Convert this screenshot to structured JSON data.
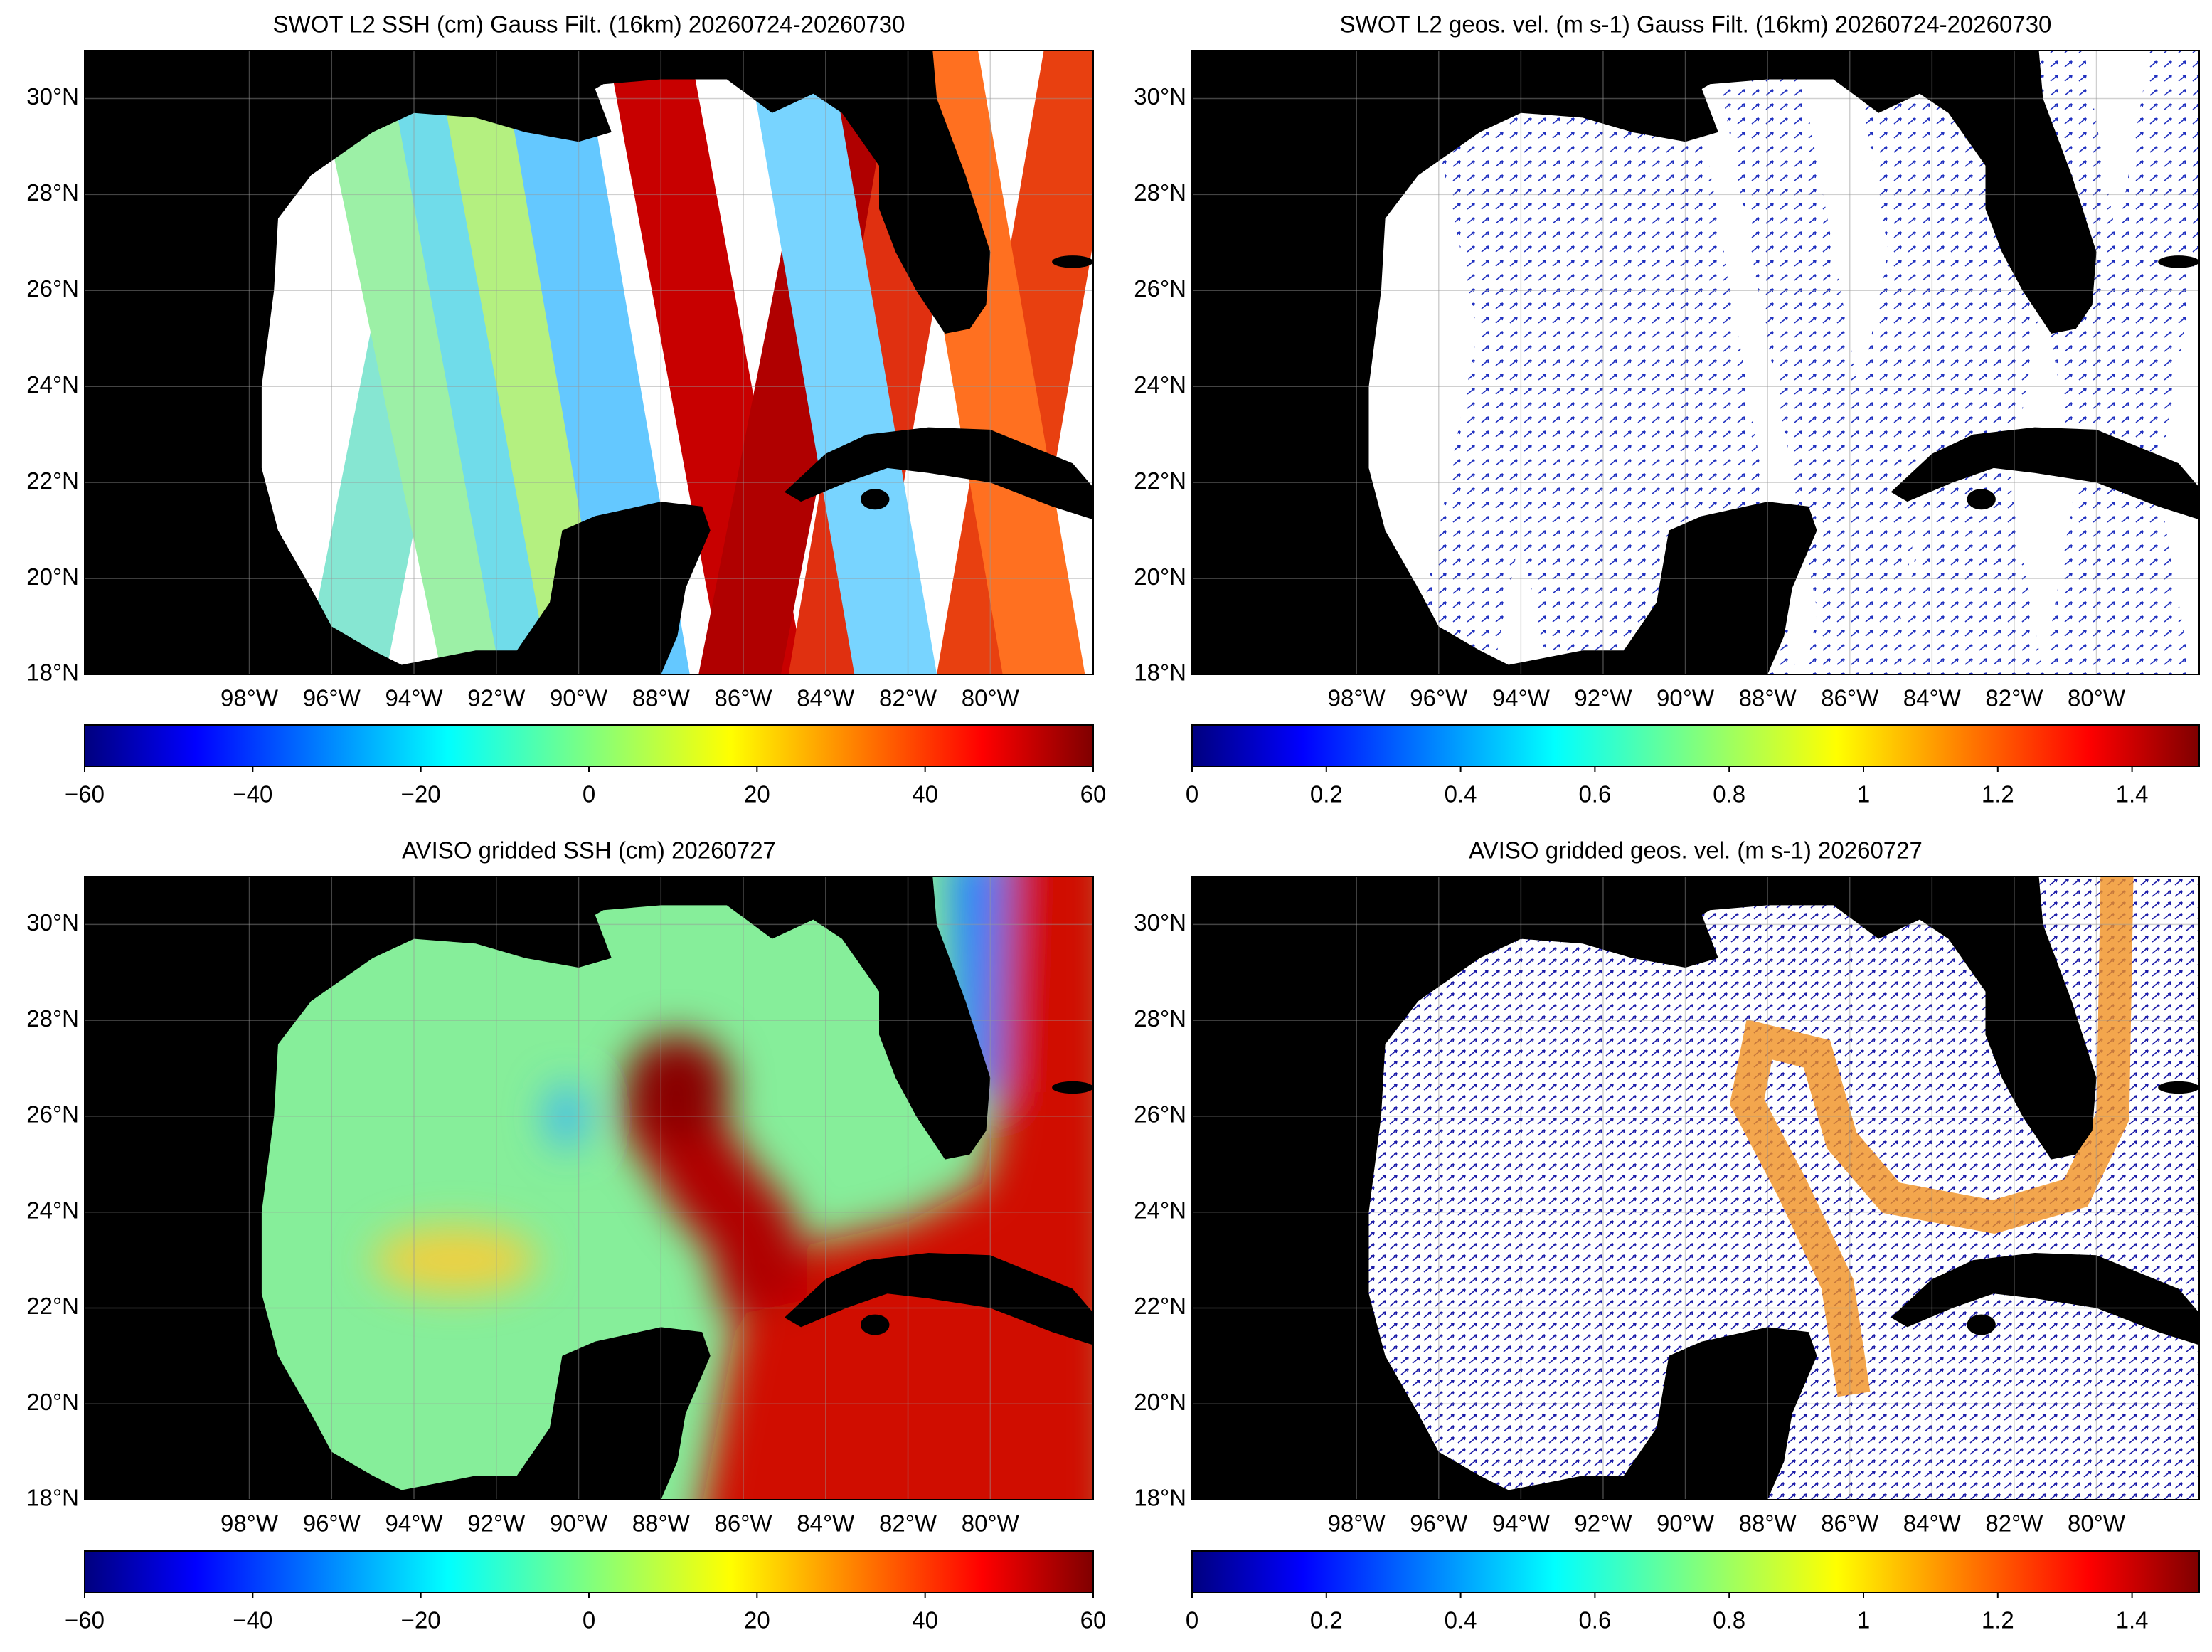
{
  "chart_data": [
    {
      "type": "map",
      "title": "SWOT L2 SSH (cm) Gauss Filt. (16km) 20260724-20260730",
      "xlim": [
        -102,
        -77.5
      ],
      "ylim": [
        18,
        31
      ],
      "xticks": [
        {
          "value": -98,
          "label": "98°W"
        },
        {
          "value": -96,
          "label": "96°W"
        },
        {
          "value": -94,
          "label": "94°W"
        },
        {
          "value": -92,
          "label": "92°W"
        },
        {
          "value": -90,
          "label": "90°W"
        },
        {
          "value": -88,
          "label": "88°W"
        },
        {
          "value": -86,
          "label": "86°W"
        },
        {
          "value": -84,
          "label": "84°W"
        },
        {
          "value": -82,
          "label": "82°W"
        },
        {
          "value": -80,
          "label": "80°W"
        }
      ],
      "yticks": [
        {
          "value": 18,
          "label": "18°N"
        },
        {
          "value": 20,
          "label": "20°N"
        },
        {
          "value": 22,
          "label": "22°N"
        },
        {
          "value": 24,
          "label": "24°N"
        },
        {
          "value": 26,
          "label": "26°N"
        },
        {
          "value": 28,
          "label": "28°N"
        },
        {
          "value": 30,
          "label": "30°N"
        }
      ],
      "grid": true,
      "colorbar": {
        "colormap": "jet",
        "lim": [
          -60,
          60
        ],
        "ticks": [
          {
            "value": -60,
            "label": "−60"
          },
          {
            "value": -40,
            "label": "−40"
          },
          {
            "value": -20,
            "label": "−20"
          },
          0,
          20,
          40,
          60
        ]
      }
    },
    {
      "type": "map",
      "title": "SWOT L2 geos. vel. (m s-1) Gauss Filt. (16km) 20260724-20260730",
      "xlim": [
        -102,
        -77.5
      ],
      "ylim": [
        18,
        31
      ],
      "xticks": [
        {
          "value": -98,
          "label": "98°W"
        },
        {
          "value": -96,
          "label": "96°W"
        },
        {
          "value": -94,
          "label": "94°W"
        },
        {
          "value": -92,
          "label": "92°W"
        },
        {
          "value": -90,
          "label": "90°W"
        },
        {
          "value": -88,
          "label": "88°W"
        },
        {
          "value": -86,
          "label": "86°W"
        },
        {
          "value": -84,
          "label": "84°W"
        },
        {
          "value": -82,
          "label": "82°W"
        },
        {
          "value": -80,
          "label": "80°W"
        }
      ],
      "yticks": [
        {
          "value": 18,
          "label": "18°N"
        },
        {
          "value": 20,
          "label": "20°N"
        },
        {
          "value": 22,
          "label": "22°N"
        },
        {
          "value": 24,
          "label": "24°N"
        },
        {
          "value": 26,
          "label": "26°N"
        },
        {
          "value": 28,
          "label": "28°N"
        },
        {
          "value": 30,
          "label": "30°N"
        }
      ],
      "grid": true,
      "colorbar": {
        "colormap": "jet",
        "lim": [
          0,
          1.5
        ],
        "ticks": [
          0,
          0.2,
          0.4,
          0.6,
          0.8,
          1,
          1.2,
          1.4
        ]
      }
    },
    {
      "type": "map",
      "title": "AVISO gridded SSH (cm) 20260727",
      "xlim": [
        -102,
        -77.5
      ],
      "ylim": [
        18,
        31
      ],
      "xticks": [
        {
          "value": -98,
          "label": "98°W"
        },
        {
          "value": -96,
          "label": "96°W"
        },
        {
          "value": -94,
          "label": "94°W"
        },
        {
          "value": -92,
          "label": "92°W"
        },
        {
          "value": -90,
          "label": "90°W"
        },
        {
          "value": -88,
          "label": "88°W"
        },
        {
          "value": -86,
          "label": "86°W"
        },
        {
          "value": -84,
          "label": "84°W"
        },
        {
          "value": -82,
          "label": "82°W"
        },
        {
          "value": -80,
          "label": "80°W"
        }
      ],
      "yticks": [
        {
          "value": 18,
          "label": "18°N"
        },
        {
          "value": 20,
          "label": "20°N"
        },
        {
          "value": 22,
          "label": "22°N"
        },
        {
          "value": 24,
          "label": "24°N"
        },
        {
          "value": 26,
          "label": "26°N"
        },
        {
          "value": 28,
          "label": "28°N"
        },
        {
          "value": 30,
          "label": "30°N"
        }
      ],
      "grid": true,
      "colorbar": {
        "colormap": "jet",
        "lim": [
          -60,
          60
        ],
        "ticks": [
          {
            "value": -60,
            "label": "−60"
          },
          {
            "value": -40,
            "label": "−40"
          },
          {
            "value": -20,
            "label": "−20"
          },
          0,
          20,
          40,
          60
        ]
      }
    },
    {
      "type": "map",
      "title": "AVISO gridded geos. vel. (m s-1)  20260727",
      "xlim": [
        -102,
        -77.5
      ],
      "ylim": [
        18,
        31
      ],
      "xticks": [
        {
          "value": -98,
          "label": "98°W"
        },
        {
          "value": -96,
          "label": "96°W"
        },
        {
          "value": -94,
          "label": "94°W"
        },
        {
          "value": -92,
          "label": "92°W"
        },
        {
          "value": -90,
          "label": "90°W"
        },
        {
          "value": -88,
          "label": "88°W"
        },
        {
          "value": -86,
          "label": "86°W"
        },
        {
          "value": -84,
          "label": "84°W"
        },
        {
          "value": -82,
          "label": "82°W"
        },
        {
          "value": -80,
          "label": "80°W"
        }
      ],
      "yticks": [
        {
          "value": 18,
          "label": "18°N"
        },
        {
          "value": 20,
          "label": "20°N"
        },
        {
          "value": 22,
          "label": "22°N"
        },
        {
          "value": 24,
          "label": "24°N"
        },
        {
          "value": 26,
          "label": "26°N"
        },
        {
          "value": 28,
          "label": "28°N"
        },
        {
          "value": 30,
          "label": "30°N"
        }
      ],
      "grid": true,
      "colorbar": {
        "colormap": "jet",
        "lim": [
          0,
          1.5
        ],
        "ticks": [
          0,
          0.2,
          0.4,
          0.6,
          0.8,
          1,
          1.2,
          1.4
        ]
      }
    }
  ]
}
